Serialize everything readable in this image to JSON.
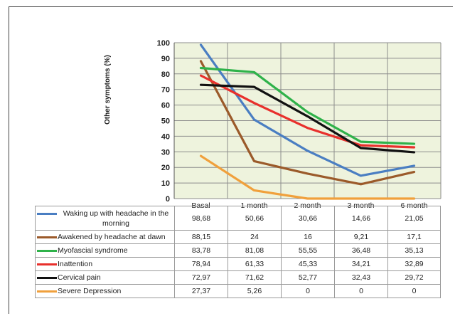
{
  "chart_data": {
    "type": "line",
    "title": "",
    "xlabel": "",
    "ylabel": "Other symptoms (%)",
    "ylim": [
      0,
      100
    ],
    "yticks": [
      0,
      10,
      20,
      30,
      40,
      50,
      60,
      70,
      80,
      90,
      100
    ],
    "grid": true,
    "plot_background": "#eef3dd",
    "categories": [
      "Basal",
      "1 month",
      "2 month",
      "3 month",
      "6 month"
    ],
    "series": [
      {
        "name": "Waking up with headache in the morning",
        "color": "#4a7ec2",
        "values": [
          98.68,
          50.66,
          30.66,
          14.66,
          21.05
        ],
        "labels": [
          "98,68",
          "50,66",
          "30,66",
          "14,66",
          "21,05"
        ]
      },
      {
        "name": "Awakened by headache at dawn",
        "color": "#9b5a2a",
        "values": [
          88.15,
          24,
          16,
          9.21,
          17.1
        ],
        "labels": [
          "88,15",
          "24",
          "16",
          "9,21",
          "17,1"
        ]
      },
      {
        "name": "Myofascial syndrome",
        "color": "#2fb24a",
        "values": [
          83.78,
          81.08,
          55.55,
          36.48,
          35.13
        ],
        "labels": [
          "83,78",
          "81,08",
          "55,55",
          "36,48",
          "35,13"
        ]
      },
      {
        "name": "Inattention",
        "color": "#e8302c",
        "values": [
          78.94,
          61.33,
          45.33,
          34.21,
          32.89
        ],
        "labels": [
          "78,94",
          "61,33",
          "45,33",
          "34,21",
          "32,89"
        ]
      },
      {
        "name": "Cervical pain",
        "color": "#111111",
        "values": [
          72.97,
          71.62,
          52.77,
          32.43,
          29.72
        ],
        "labels": [
          "72,97",
          "71,62",
          "52,77",
          "32,43",
          "29,72"
        ]
      },
      {
        "name": "Severe Depression",
        "color": "#f0a03c",
        "values": [
          27.37,
          5.26,
          0,
          0,
          0
        ],
        "labels": [
          "27,37",
          "5,26",
          "0",
          "0",
          "0"
        ]
      }
    ]
  }
}
